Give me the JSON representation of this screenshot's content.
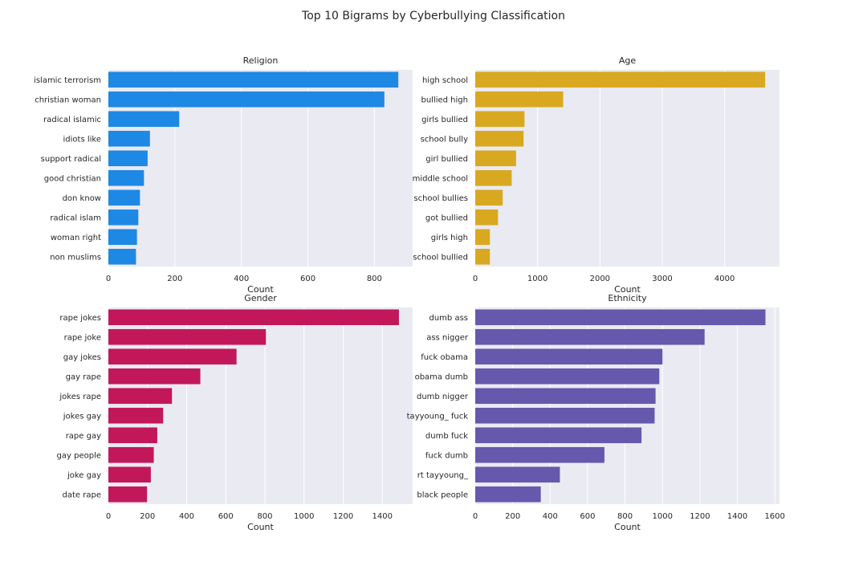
{
  "figure": {
    "title": "Top 10 Bigrams by Cyberbullying Classification"
  },
  "chart_data": [
    {
      "type": "bar",
      "orientation": "horizontal",
      "title": "Religion",
      "xlabel": "Count",
      "ylabel": "",
      "color": "#1E88E5",
      "xlim": [
        0,
        915
      ],
      "xticks": [
        0,
        200,
        400,
        600,
        800
      ],
      "grid": true,
      "categories": [
        "islamic terrorism",
        "christian woman",
        "radical islamic",
        "idiots like",
        "support radical",
        "good christian",
        "don know",
        "radical islam",
        "woman right",
        "non muslims"
      ],
      "values": [
        872,
        830,
        213,
        125,
        118,
        107,
        95,
        90,
        86,
        83
      ]
    },
    {
      "type": "bar",
      "orientation": "horizontal",
      "title": "Age",
      "xlabel": "Count",
      "ylabel": "",
      "color": "#D8A920",
      "xlim": [
        0,
        4880
      ],
      "xticks": [
        0,
        1000,
        2000,
        3000,
        4000
      ],
      "grid": true,
      "categories": [
        "high school",
        "bullied high",
        "girls bullied",
        "school bully",
        "girl bullied",
        "middle school",
        "school bullies",
        "got bullied",
        "girls high",
        "school bullied"
      ],
      "values": [
        4650,
        1410,
        790,
        775,
        655,
        585,
        440,
        365,
        235,
        235
      ]
    },
    {
      "type": "bar",
      "orientation": "horizontal",
      "title": "Gender",
      "xlabel": "Count",
      "ylabel": "",
      "color": "#C2185B",
      "xlim": [
        0,
        1555
      ],
      "xticks": [
        0,
        200,
        400,
        600,
        800,
        1000,
        1200,
        1400
      ],
      "grid": true,
      "categories": [
        "rape jokes",
        "rape joke",
        "gay jokes",
        "gay rape",
        "jokes rape",
        "jokes gay",
        "rape gay",
        "gay people",
        "joke gay",
        "date rape"
      ],
      "values": [
        1485,
        805,
        655,
        470,
        325,
        280,
        250,
        232,
        217,
        198
      ]
    },
    {
      "type": "bar",
      "orientation": "horizontal",
      "title": "Ethnicity",
      "xlabel": "Count",
      "ylabel": "",
      "color": "#6658AC",
      "xlim": [
        0,
        1625
      ],
      "xticks": [
        0,
        200,
        400,
        600,
        800,
        1000,
        1200,
        1400,
        1600
      ],
      "grid": true,
      "categories": [
        "dumb ass",
        "ass nigger",
        "fuck obama",
        "obama dumb",
        "dumb nigger",
        "tayyoung_ fuck",
        "dumb fuck",
        "fuck dumb",
        "rt tayyoung_",
        "black people"
      ],
      "values": [
        1550,
        1225,
        1000,
        983,
        963,
        958,
        888,
        690,
        452,
        350
      ]
    }
  ]
}
